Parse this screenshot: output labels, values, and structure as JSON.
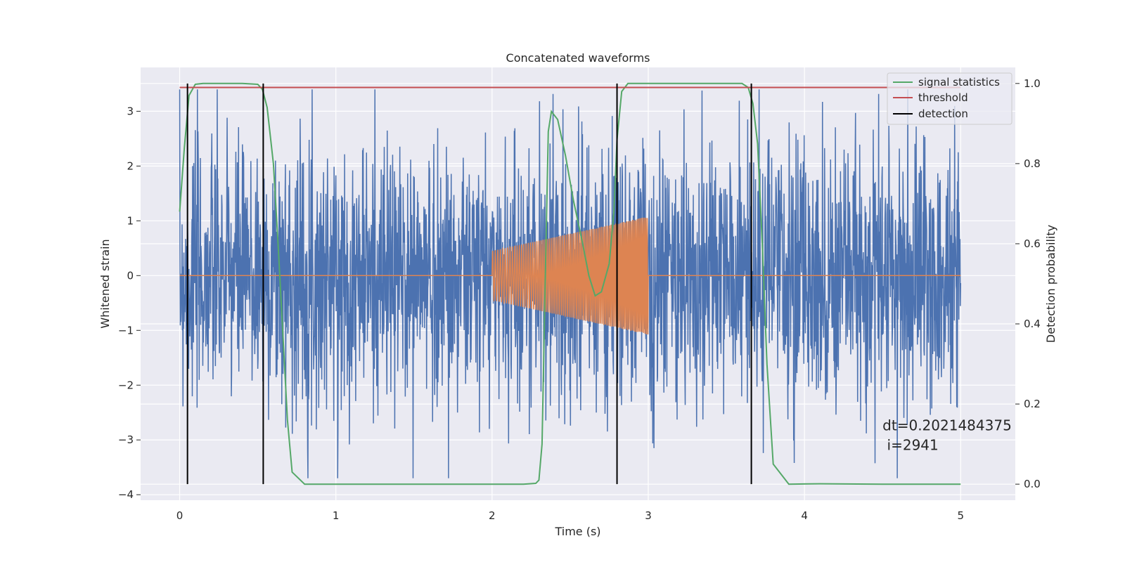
{
  "chart_data": {
    "type": "line",
    "title": "Concatenated waveforms",
    "xlabel": "Time (s)",
    "ylabel": "Whitened strain",
    "ylabel_right": "Detection probability",
    "xlim": [
      -0.25,
      5.35
    ],
    "ylim": [
      -4.1,
      3.8
    ],
    "ylim_right": [
      -0.04,
      1.04
    ],
    "x_ticks": [
      0,
      1,
      2,
      3,
      4,
      5
    ],
    "y_ticks": [
      -4,
      -3,
      -2,
      -1,
      0,
      1,
      2,
      3
    ],
    "y_ticks_right": [
      0.0,
      0.2,
      0.4,
      0.6,
      0.8,
      1.0
    ],
    "grid": true,
    "legend_position": "top-right",
    "series": [
      {
        "name": "",
        "axis": "left",
        "color": "#4C72B0",
        "kind": "noise",
        "x_range": [
          0,
          5
        ],
        "envelope_amplitude": 1.3,
        "spike_range": [
          -3.7,
          3.4
        ]
      },
      {
        "name": "",
        "axis": "left",
        "color": "#DD8452",
        "kind": "chirp",
        "x_range": [
          0,
          5
        ],
        "chirp_start": 2.0,
        "chirp_end": 3.0,
        "amplitude_start": 0.45,
        "amplitude_end": 1.08,
        "baseline": 0
      },
      {
        "name": "signal statistics",
        "axis": "right",
        "color": "#55A868",
        "x": [
          0.0,
          0.03,
          0.06,
          0.1,
          0.15,
          0.25,
          0.4,
          0.5,
          0.53,
          0.56,
          0.6,
          0.63,
          0.66,
          0.69,
          0.72,
          0.8,
          1.0,
          1.5,
          2.0,
          2.2,
          2.28,
          2.3,
          2.32,
          2.34,
          2.36,
          2.38,
          2.42,
          2.47,
          2.52,
          2.58,
          2.62,
          2.66,
          2.7,
          2.75,
          2.78,
          2.8,
          2.83,
          2.87,
          2.92,
          3.0,
          3.3,
          3.6,
          3.64,
          3.67,
          3.7,
          3.73,
          3.76,
          3.8,
          3.9,
          4.1,
          4.5,
          5.0
        ],
        "y": [
          0.68,
          0.84,
          0.97,
          0.998,
          1.0,
          1.0,
          1.0,
          0.998,
          0.985,
          0.94,
          0.8,
          0.6,
          0.38,
          0.16,
          0.03,
          0.0,
          0.0,
          0.0,
          0.0,
          0.0,
          0.002,
          0.01,
          0.1,
          0.5,
          0.88,
          0.93,
          0.91,
          0.82,
          0.71,
          0.6,
          0.52,
          0.47,
          0.48,
          0.55,
          0.68,
          0.86,
          0.98,
          1.0,
          1.0,
          1.0,
          1.0,
          1.0,
          0.99,
          0.95,
          0.85,
          0.6,
          0.3,
          0.05,
          0.0,
          0.001,
          0.0,
          0.0
        ]
      },
      {
        "name": "threshold",
        "axis": "right",
        "color": "#C44E52",
        "x": [
          0.0,
          5.0
        ],
        "y": [
          0.99,
          0.99
        ]
      },
      {
        "name": "detection",
        "axis": "right",
        "color": "#000000",
        "kind": "vlines",
        "x": [
          0.05,
          0.535,
          2.8,
          3.66
        ],
        "y_range": [
          0.0,
          1.0
        ]
      }
    ],
    "annotation": {
      "line1": "dt=0.2021484375",
      "line2": " i=2941",
      "x": 4.5,
      "y_right": 0.11
    }
  }
}
